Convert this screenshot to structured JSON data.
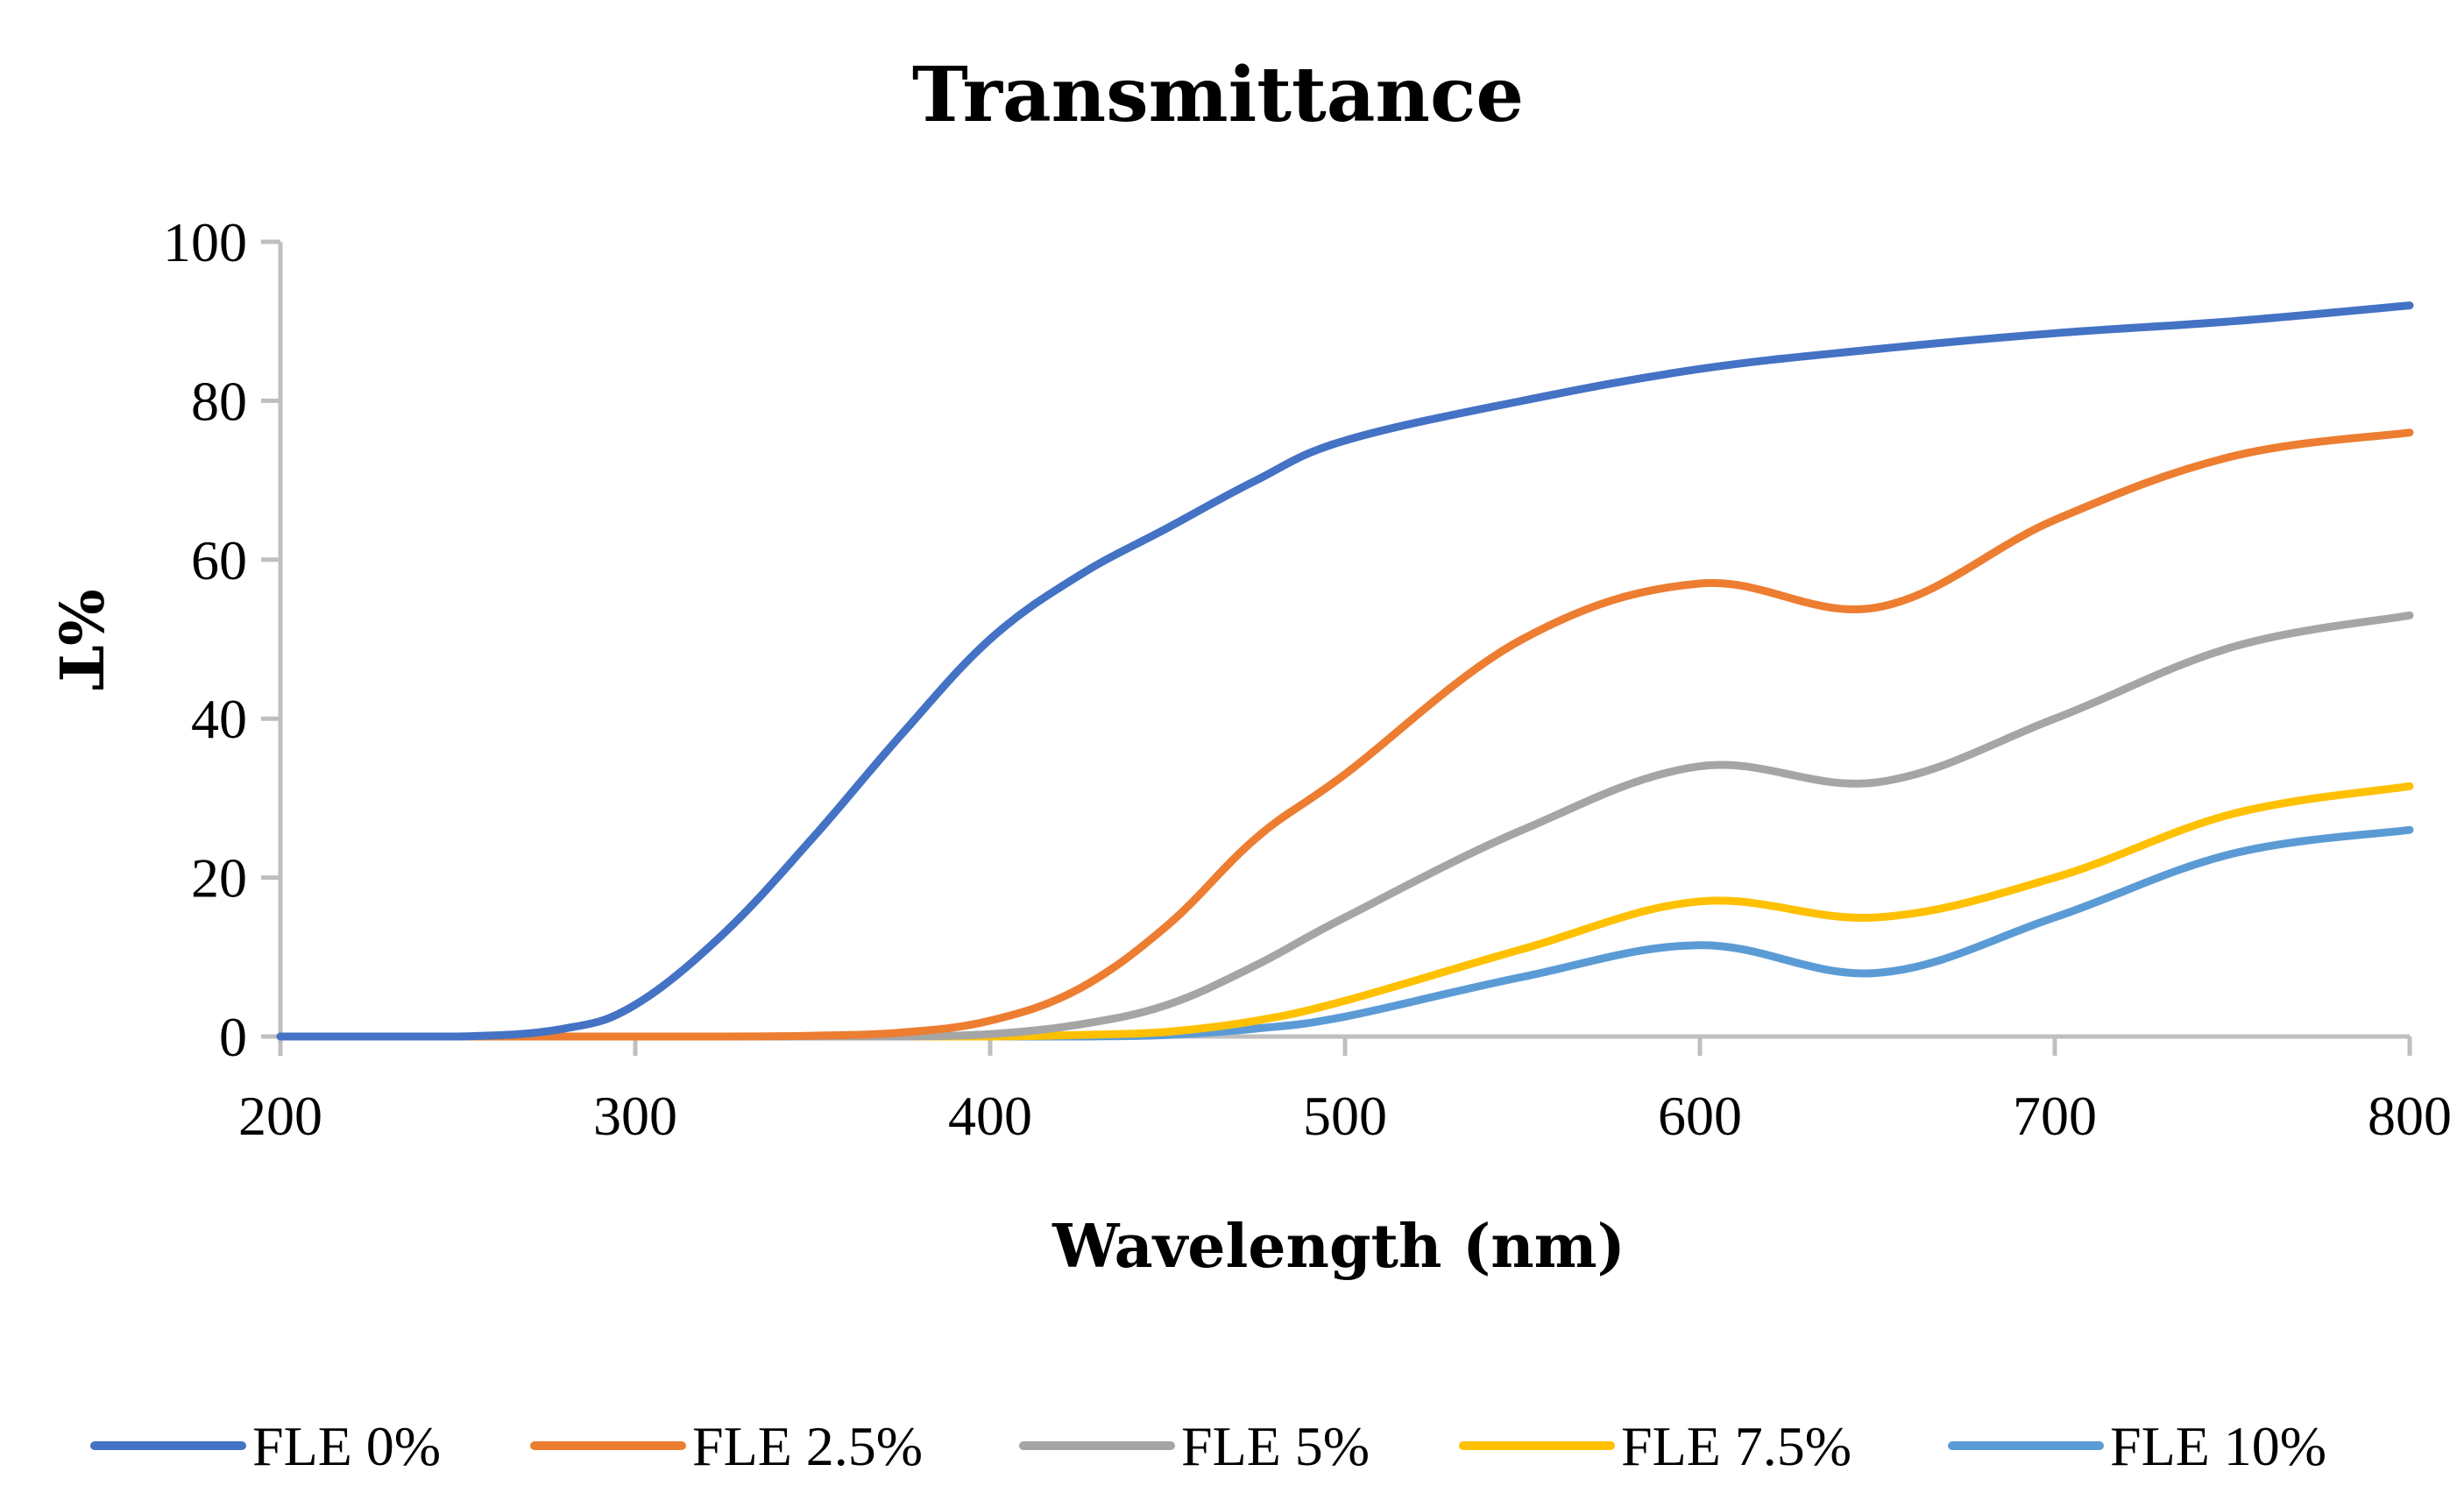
{
  "chart_data": {
    "type": "line",
    "title": "Transmittance",
    "xlabel": "Wavelength (nm)",
    "ylabel": "%T",
    "xlim": [
      200,
      800
    ],
    "ylim": [
      0,
      100
    ],
    "x_ticks": [
      200,
      300,
      400,
      500,
      600,
      700,
      800
    ],
    "y_ticks": [
      0,
      20,
      40,
      60,
      80,
      100
    ],
    "grid": false,
    "legend_position": "bottom",
    "x": [
      200,
      250,
      280,
      300,
      325,
      350,
      375,
      400,
      425,
      450,
      475,
      500,
      550,
      600,
      650,
      700,
      750,
      800
    ],
    "series": [
      {
        "name": "FLE 0%",
        "color": "#4472c4",
        "values": [
          0,
          0,
          1,
          4,
          13,
          25,
          38,
          50,
          58,
          64,
          70,
          75,
          80,
          84,
          86.5,
          88.5,
          90,
          92
        ]
      },
      {
        "name": "FLE 2.5%",
        "color": "#ed7d31",
        "values": [
          0,
          0,
          0,
          0,
          0,
          0.1,
          0.5,
          2,
          6,
          14,
          25,
          33,
          50,
          57,
          54,
          65,
          73,
          76
        ]
      },
      {
        "name": "FLE 5%",
        "color": "#a5a5a5",
        "values": [
          0,
          0,
          0,
          0,
          0,
          0,
          0,
          0.3,
          1.5,
          4,
          9,
          15,
          26,
          34,
          32,
          40,
          49,
          53
        ]
      },
      {
        "name": "FLE 7.5%",
        "color": "#ffc000",
        "values": [
          0,
          0,
          0,
          0,
          0,
          0,
          0,
          0,
          0.2,
          0.6,
          2,
          4.5,
          11,
          17,
          15,
          20,
          28,
          31.5
        ]
      },
      {
        "name": "FLE 10%",
        "color": "#5b9bd5",
        "values": [
          0,
          0,
          0,
          0,
          0,
          0,
          0,
          0,
          0,
          0.2,
          1,
          2.5,
          7.5,
          11.5,
          8,
          15,
          23,
          26
        ]
      }
    ]
  }
}
